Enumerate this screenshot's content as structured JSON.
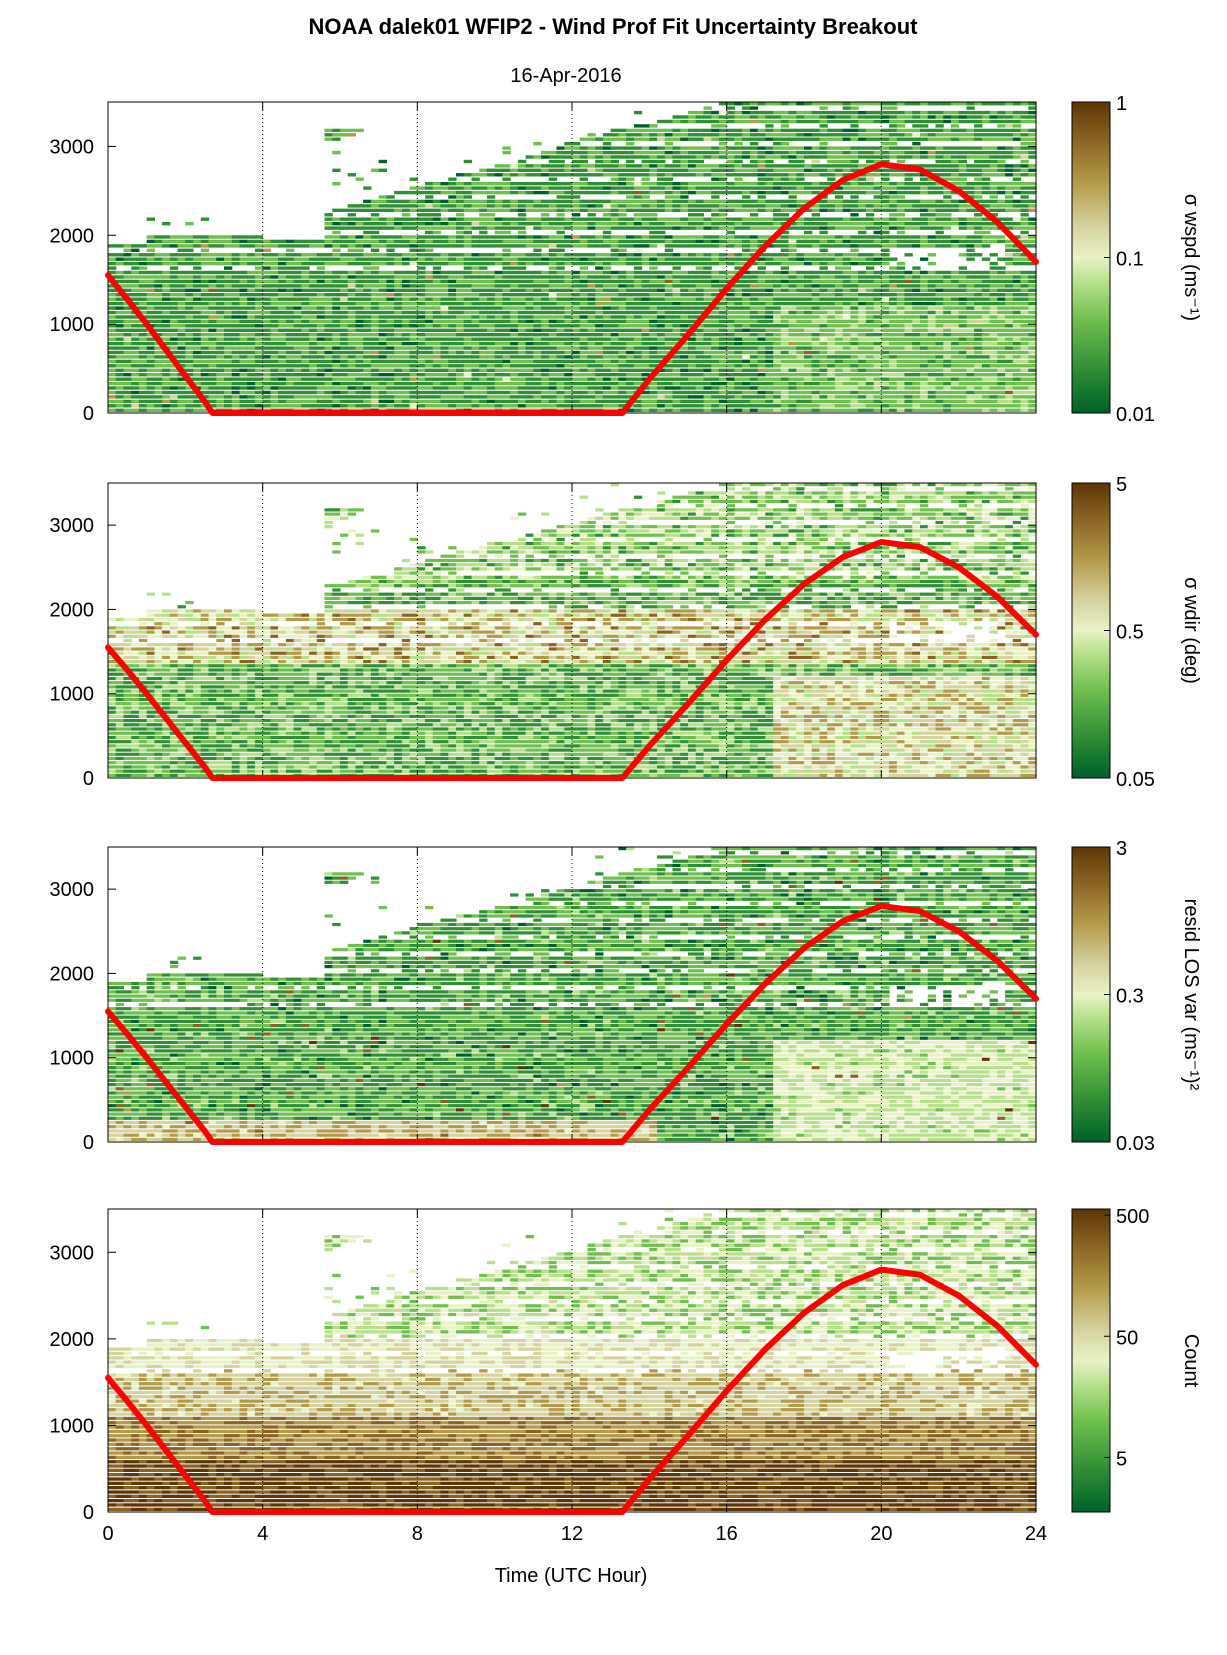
{
  "chart_data": {
    "title": "NOAA dalek01 WFIP2 - Wind Prof Fit Uncertainty Breakout",
    "subtitle": "16-Apr-2016",
    "xlabel": "Time (UTC Hour)",
    "xlim": [
      0,
      24
    ],
    "xticks": [
      "0",
      "4",
      "8",
      "12",
      "16",
      "20",
      "24"
    ],
    "xgrid_dotted_at": [
      4,
      8,
      12,
      16,
      20
    ],
    "ylim": [
      0,
      3500
    ],
    "yticks": [
      "0",
      "1000",
      "2000",
      "3000"
    ],
    "overlay_line": {
      "color": "#ff0000",
      "name": "",
      "x": [
        0,
        0.5,
        1,
        1.5,
        2,
        2.5,
        2.7,
        13.3,
        14,
        15,
        16,
        17,
        18,
        19,
        20,
        21,
        22,
        23,
        24
      ],
      "y": [
        1550,
        1280,
        1000,
        710,
        420,
        130,
        0,
        0,
        380,
        880,
        1400,
        1880,
        2300,
        2620,
        2800,
        2740,
        2500,
        2150,
        1700
      ]
    },
    "panels": [
      {
        "type": "heatmap",
        "colorbar_label": "σ wspd (ms⁻¹)",
        "colorbar_scale": "log",
        "colorbar_range": [
          0.01,
          1
        ],
        "colorbar_ticks": [
          "1",
          "0.1",
          "0.01"
        ]
      },
      {
        "type": "heatmap",
        "colorbar_label": "σ wdir (deg)",
        "colorbar_scale": "log",
        "colorbar_range": [
          0.05,
          5
        ],
        "colorbar_ticks": [
          "5",
          "0.5",
          "0.05"
        ]
      },
      {
        "type": "heatmap",
        "colorbar_label": "resid LOS var (ms⁻¹)²",
        "colorbar_scale": "log",
        "colorbar_range": [
          0.03,
          3
        ],
        "colorbar_ticks": [
          "3",
          "0.3",
          "0.03"
        ]
      },
      {
        "type": "heatmap",
        "colorbar_label": "Count",
        "colorbar_scale": "log",
        "colorbar_range": [
          0.5,
          500
        ],
        "colorbar_ticks": [
          "500",
          "50",
          "5"
        ]
      }
    ],
    "colormap": [
      "#00602a",
      "#2f8f34",
      "#6fbf4e",
      "#b6e08a",
      "#e9f2c6",
      "#d6d3a0",
      "#b39a4a",
      "#8a6322",
      "#5e3606"
    ]
  }
}
